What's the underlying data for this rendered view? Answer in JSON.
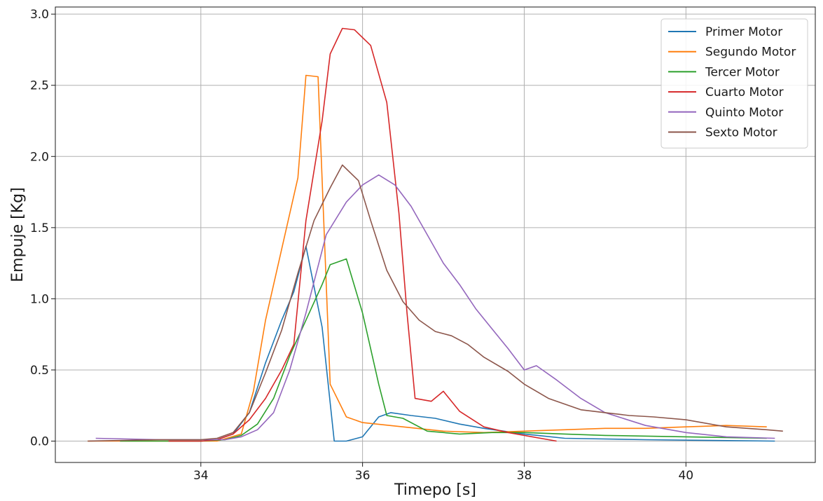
{
  "chart_data": {
    "type": "line",
    "title": "",
    "xlabel": "Timepo [s]",
    "ylabel": "Empuje [Kg]",
    "xlim": [
      32.2,
      41.6
    ],
    "ylim": [
      -0.15,
      3.05
    ],
    "xticks": [
      34,
      36,
      38,
      40
    ],
    "yticks": [
      0.0,
      0.5,
      1.0,
      1.5,
      2.0,
      2.5,
      3.0
    ],
    "xtick_labels": [
      "34",
      "36",
      "38",
      "40"
    ],
    "ytick_labels": [
      "0.0",
      "0.5",
      "1.0",
      "1.5",
      "2.0",
      "2.5",
      "3.0"
    ],
    "grid": true,
    "legend_position": "top-right",
    "series": [
      {
        "name": "Primer Motor",
        "color": "#1f77b4",
        "points": [
          [
            33.6,
            0.0
          ],
          [
            34.0,
            0.0
          ],
          [
            34.2,
            0.01
          ],
          [
            34.4,
            0.05
          ],
          [
            34.6,
            0.2
          ],
          [
            34.8,
            0.55
          ],
          [
            35.0,
            0.85
          ],
          [
            35.15,
            1.05
          ],
          [
            35.3,
            1.37
          ],
          [
            35.5,
            0.8
          ],
          [
            35.65,
            0.0
          ],
          [
            35.8,
            0.0
          ],
          [
            36.0,
            0.03
          ],
          [
            36.2,
            0.17
          ],
          [
            36.35,
            0.2
          ],
          [
            36.6,
            0.18
          ],
          [
            36.9,
            0.16
          ],
          [
            37.2,
            0.12
          ],
          [
            37.5,
            0.09
          ],
          [
            38.0,
            0.05
          ],
          [
            38.5,
            0.02
          ],
          [
            39.5,
            0.01
          ],
          [
            41.1,
            0.0
          ]
        ]
      },
      {
        "name": "Segundo Motor",
        "color": "#ff7f0e",
        "points": [
          [
            32.6,
            0.0
          ],
          [
            33.5,
            0.0
          ],
          [
            34.2,
            0.0
          ],
          [
            34.5,
            0.05
          ],
          [
            34.65,
            0.35
          ],
          [
            34.8,
            0.85
          ],
          [
            35.0,
            1.35
          ],
          [
            35.2,
            1.85
          ],
          [
            35.3,
            2.57
          ],
          [
            35.45,
            2.56
          ],
          [
            35.6,
            0.4
          ],
          [
            35.8,
            0.17
          ],
          [
            36.0,
            0.13
          ],
          [
            36.5,
            0.1
          ],
          [
            37.0,
            0.07
          ],
          [
            37.5,
            0.06
          ],
          [
            38.0,
            0.07
          ],
          [
            38.5,
            0.08
          ],
          [
            39.0,
            0.09
          ],
          [
            39.5,
            0.09
          ],
          [
            40.0,
            0.1
          ],
          [
            40.5,
            0.11
          ],
          [
            41.0,
            0.1
          ]
        ]
      },
      {
        "name": "Tercer Motor",
        "color": "#2ca02c",
        "points": [
          [
            33.0,
            0.0
          ],
          [
            34.0,
            0.0
          ],
          [
            34.3,
            0.01
          ],
          [
            34.5,
            0.04
          ],
          [
            34.7,
            0.12
          ],
          [
            34.9,
            0.3
          ],
          [
            35.1,
            0.6
          ],
          [
            35.3,
            0.85
          ],
          [
            35.5,
            1.1
          ],
          [
            35.6,
            1.24
          ],
          [
            35.8,
            1.28
          ],
          [
            36.0,
            0.9
          ],
          [
            36.2,
            0.4
          ],
          [
            36.3,
            0.18
          ],
          [
            36.5,
            0.16
          ],
          [
            36.8,
            0.07
          ],
          [
            37.2,
            0.05
          ],
          [
            37.6,
            0.06
          ],
          [
            38.0,
            0.06
          ],
          [
            38.5,
            0.05
          ],
          [
            39.0,
            0.04
          ],
          [
            40.0,
            0.03
          ],
          [
            41.0,
            0.02
          ]
        ]
      },
      {
        "name": "Cuarto Motor",
        "color": "#d62728",
        "points": [
          [
            33.6,
            0.0
          ],
          [
            34.0,
            0.0
          ],
          [
            34.2,
            0.01
          ],
          [
            34.4,
            0.05
          ],
          [
            34.6,
            0.15
          ],
          [
            34.8,
            0.3
          ],
          [
            35.0,
            0.5
          ],
          [
            35.15,
            0.68
          ],
          [
            35.3,
            1.55
          ],
          [
            35.5,
            2.25
          ],
          [
            35.6,
            2.72
          ],
          [
            35.75,
            2.9
          ],
          [
            35.9,
            2.89
          ],
          [
            36.1,
            2.78
          ],
          [
            36.3,
            2.38
          ],
          [
            36.45,
            1.6
          ],
          [
            36.55,
            0.9
          ],
          [
            36.65,
            0.3
          ],
          [
            36.85,
            0.28
          ],
          [
            37.0,
            0.35
          ],
          [
            37.2,
            0.21
          ],
          [
            37.5,
            0.1
          ],
          [
            37.8,
            0.06
          ],
          [
            38.1,
            0.03
          ],
          [
            38.4,
            0.0
          ]
        ]
      },
      {
        "name": "Quinto Motor",
        "color": "#9467bd",
        "points": [
          [
            32.7,
            0.02
          ],
          [
            33.5,
            0.01
          ],
          [
            34.3,
            0.01
          ],
          [
            34.5,
            0.03
          ],
          [
            34.7,
            0.08
          ],
          [
            34.9,
            0.2
          ],
          [
            35.1,
            0.5
          ],
          [
            35.3,
            0.9
          ],
          [
            35.55,
            1.45
          ],
          [
            35.8,
            1.68
          ],
          [
            36.0,
            1.8
          ],
          [
            36.2,
            1.87
          ],
          [
            36.4,
            1.8
          ],
          [
            36.6,
            1.65
          ],
          [
            36.8,
            1.45
          ],
          [
            37.0,
            1.25
          ],
          [
            37.2,
            1.1
          ],
          [
            37.4,
            0.93
          ],
          [
            37.6,
            0.79
          ],
          [
            37.8,
            0.65
          ],
          [
            38.0,
            0.5
          ],
          [
            38.15,
            0.53
          ],
          [
            38.4,
            0.43
          ],
          [
            38.7,
            0.3
          ],
          [
            39.0,
            0.2
          ],
          [
            39.5,
            0.11
          ],
          [
            40.0,
            0.06
          ],
          [
            40.5,
            0.03
          ],
          [
            41.1,
            0.02
          ]
        ]
      },
      {
        "name": "Sexto Motor",
        "color": "#8c564b",
        "points": [
          [
            32.6,
            0.0
          ],
          [
            33.5,
            0.01
          ],
          [
            34.0,
            0.01
          ],
          [
            34.2,
            0.02
          ],
          [
            34.4,
            0.06
          ],
          [
            34.6,
            0.2
          ],
          [
            34.8,
            0.48
          ],
          [
            35.0,
            0.78
          ],
          [
            35.2,
            1.18
          ],
          [
            35.4,
            1.55
          ],
          [
            35.6,
            1.78
          ],
          [
            35.75,
            1.94
          ],
          [
            35.95,
            1.83
          ],
          [
            36.1,
            1.55
          ],
          [
            36.3,
            1.2
          ],
          [
            36.5,
            0.98
          ],
          [
            36.7,
            0.85
          ],
          [
            36.9,
            0.77
          ],
          [
            37.1,
            0.74
          ],
          [
            37.3,
            0.68
          ],
          [
            37.5,
            0.59
          ],
          [
            37.8,
            0.49
          ],
          [
            38.0,
            0.4
          ],
          [
            38.3,
            0.3
          ],
          [
            38.7,
            0.22
          ],
          [
            39.0,
            0.2
          ],
          [
            39.3,
            0.18
          ],
          [
            39.6,
            0.17
          ],
          [
            40.0,
            0.15
          ],
          [
            40.5,
            0.1
          ],
          [
            41.0,
            0.08
          ],
          [
            41.2,
            0.07
          ]
        ]
      }
    ]
  }
}
